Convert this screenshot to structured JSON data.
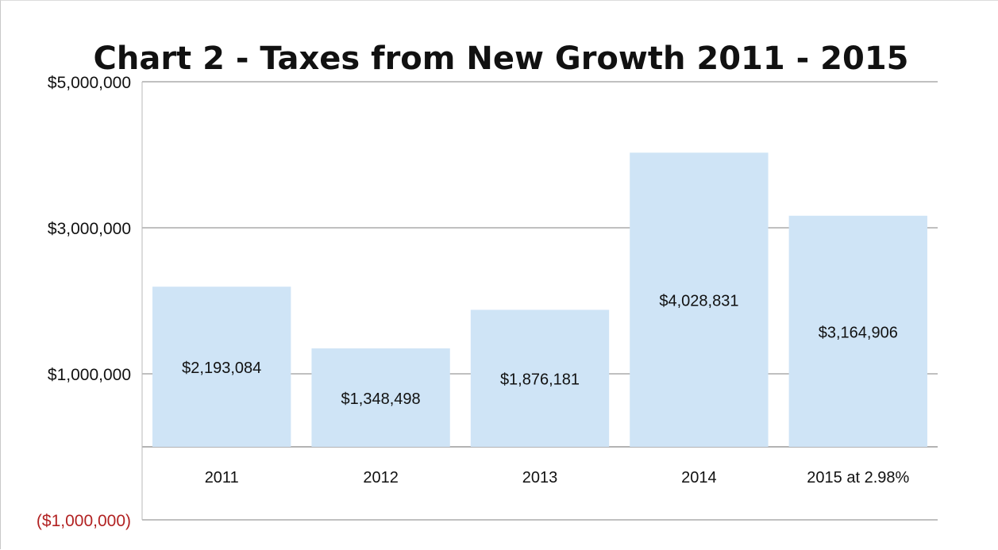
{
  "chart_data": {
    "type": "bar",
    "title": "Chart 2 - Taxes from New Growth 2011 - 2015",
    "xlabel": "",
    "ylabel": "",
    "categories": [
      "2011",
      "2012",
      "2013",
      "2014",
      "2015 at 2.98%"
    ],
    "values": [
      2193084,
      1348498,
      1876181,
      4028831,
      3164906
    ],
    "data_labels": [
      "$2,193,084",
      "$1,348,498",
      "$1,876,181",
      "$4,028,831",
      "$3,164,906"
    ],
    "ylim": [
      -1000000,
      5000000
    ],
    "y_tick_values": [
      5000000,
      3000000,
      1000000,
      -1000000
    ],
    "y_tick_labels": [
      "$5,000,000",
      "$3,000,000",
      "$1,000,000",
      "($1,000,000)"
    ],
    "gridlines": [
      5000000,
      3000000,
      1000000,
      0,
      -1000000
    ],
    "grid": true,
    "legend": "none",
    "colors": {
      "bar": "#cfe4f6",
      "grid": "#9a9a9a",
      "negative_tick": "#b22222",
      "text": "#111111"
    }
  }
}
